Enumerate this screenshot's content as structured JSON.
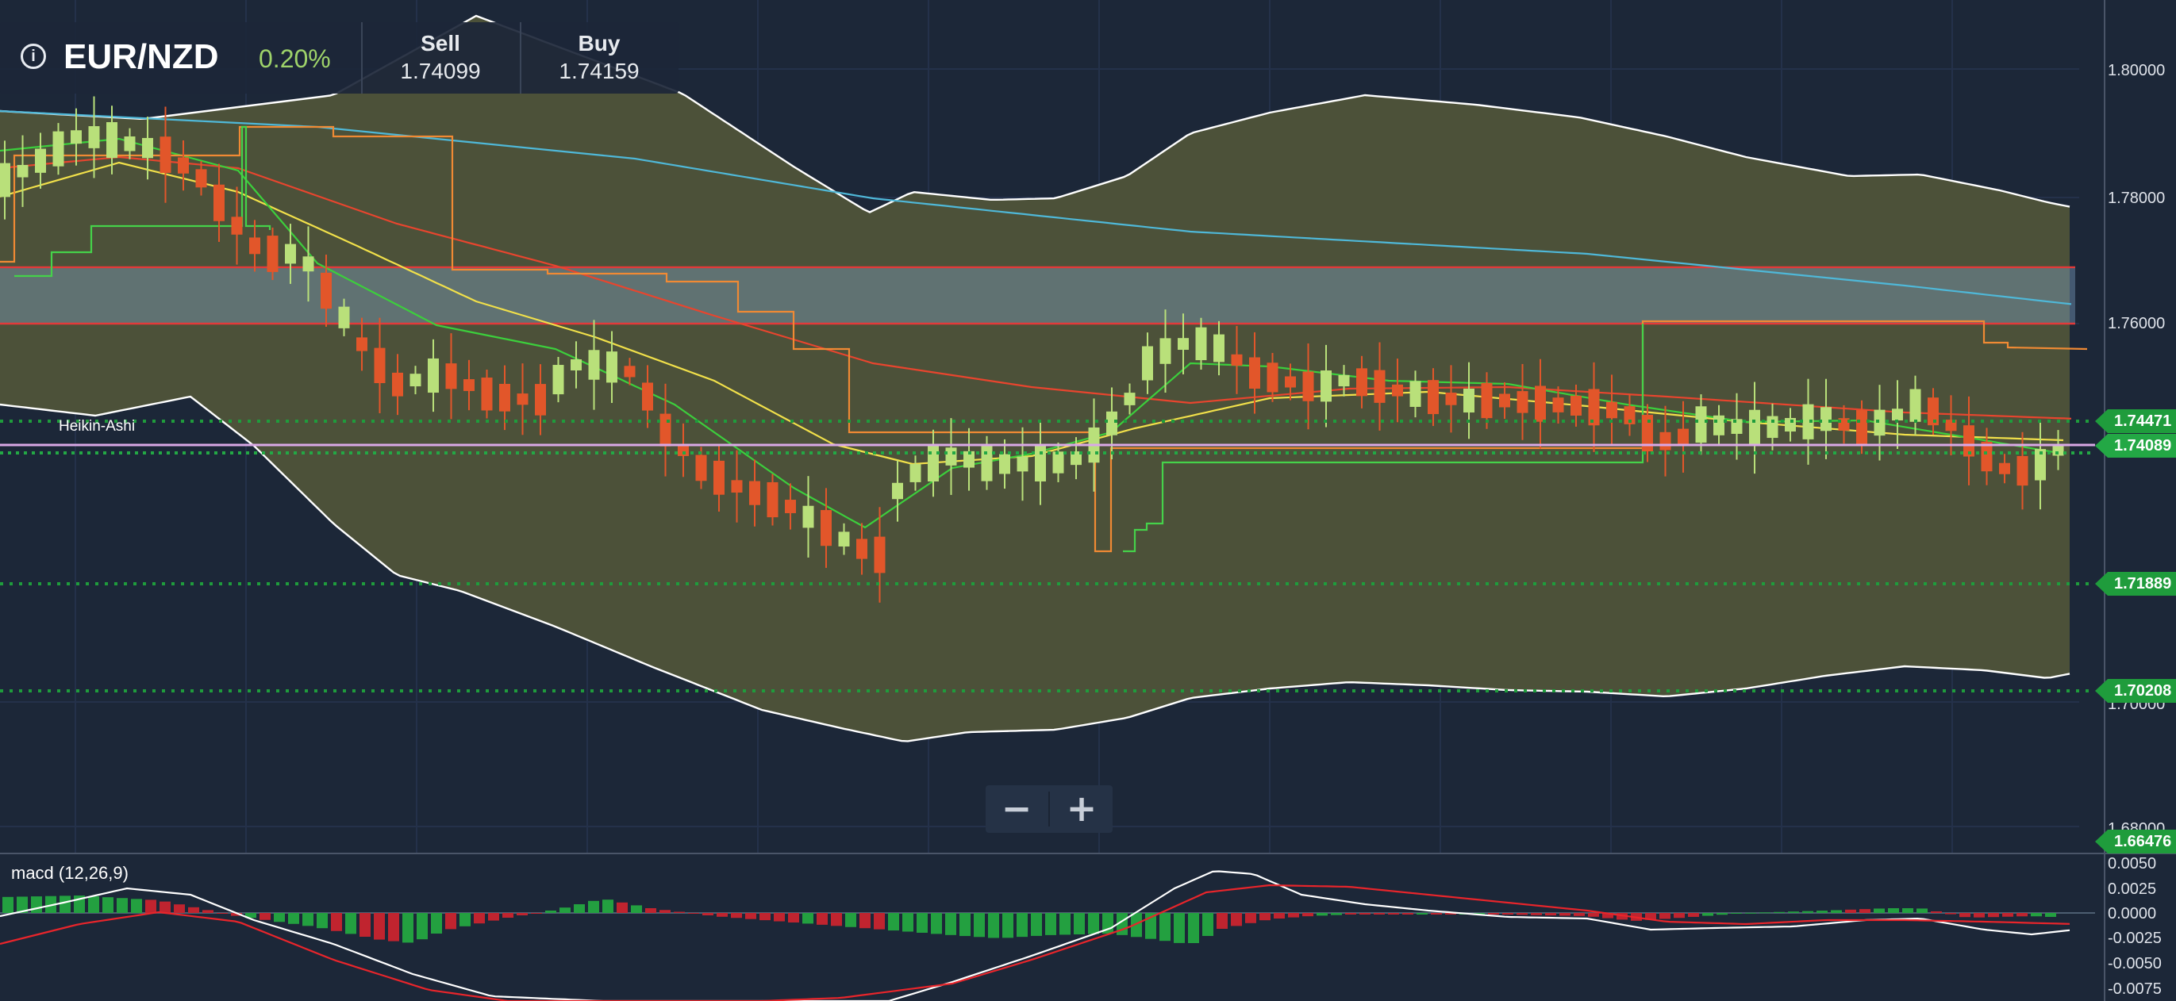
{
  "instrument": {
    "pair": "EUR/NZD",
    "change": "0.20%",
    "sell_label": "Sell",
    "sell_price": "1.74099",
    "buy_label": "Buy",
    "buy_price": "1.74159",
    "info_icon": "info-icon"
  },
  "chart": {
    "type_label": "Heikin-Ashi",
    "price_axis_ticks": [
      "1.80000",
      "1.78000",
      "1.76000",
      "1.70000",
      "1.68000"
    ],
    "price_levels": [
      {
        "label": "1.74471",
        "value": 1.74471,
        "color": "#1f9c3c",
        "style": "dotted"
      },
      {
        "label": "1.74089",
        "value": 1.74089,
        "color": "#23a845",
        "style": "current"
      },
      {
        "label": "1.71889",
        "value": 1.71889,
        "color": "#1f9c3c",
        "style": "dotted"
      },
      {
        "label": "1.70208",
        "value": 1.70208,
        "color": "#1f9c3c",
        "style": "dotted"
      },
      {
        "label": "1.66476",
        "value": 1.66476,
        "color": "#1f9c3c",
        "style": "tag-only"
      }
    ],
    "resistance_zone": {
      "from": 1.76,
      "to": 1.769,
      "color": "#e23a3a"
    },
    "current_price_line": {
      "value": 1.7413,
      "color": "#d9a8e6"
    },
    "colors": {
      "up_candle": "#b9e07a",
      "down_candle": "#e2562a",
      "bollinger_fill": "#4c5139",
      "bollinger_edge": "#ffffff",
      "ma_fast": "#3ccf3c",
      "ma_medium": "#f1e04a",
      "ma_slow": "#e8452e",
      "ma_long": "#4fb8d8",
      "step_orange": "#f08a34",
      "step_green": "#45d24a"
    }
  },
  "zoom": {
    "minus": "−",
    "plus": "+"
  },
  "macd": {
    "label": "macd (12,26,9)",
    "axis_ticks": [
      "0.0050",
      "0.0025",
      "0.0000",
      "-0.0025",
      "-0.0050",
      "-0.0075"
    ],
    "colors": {
      "positive": "#23a040",
      "negative": "#c0242f",
      "macd_line": "#ffffff",
      "signal_line": "#e8252b"
    }
  }
}
